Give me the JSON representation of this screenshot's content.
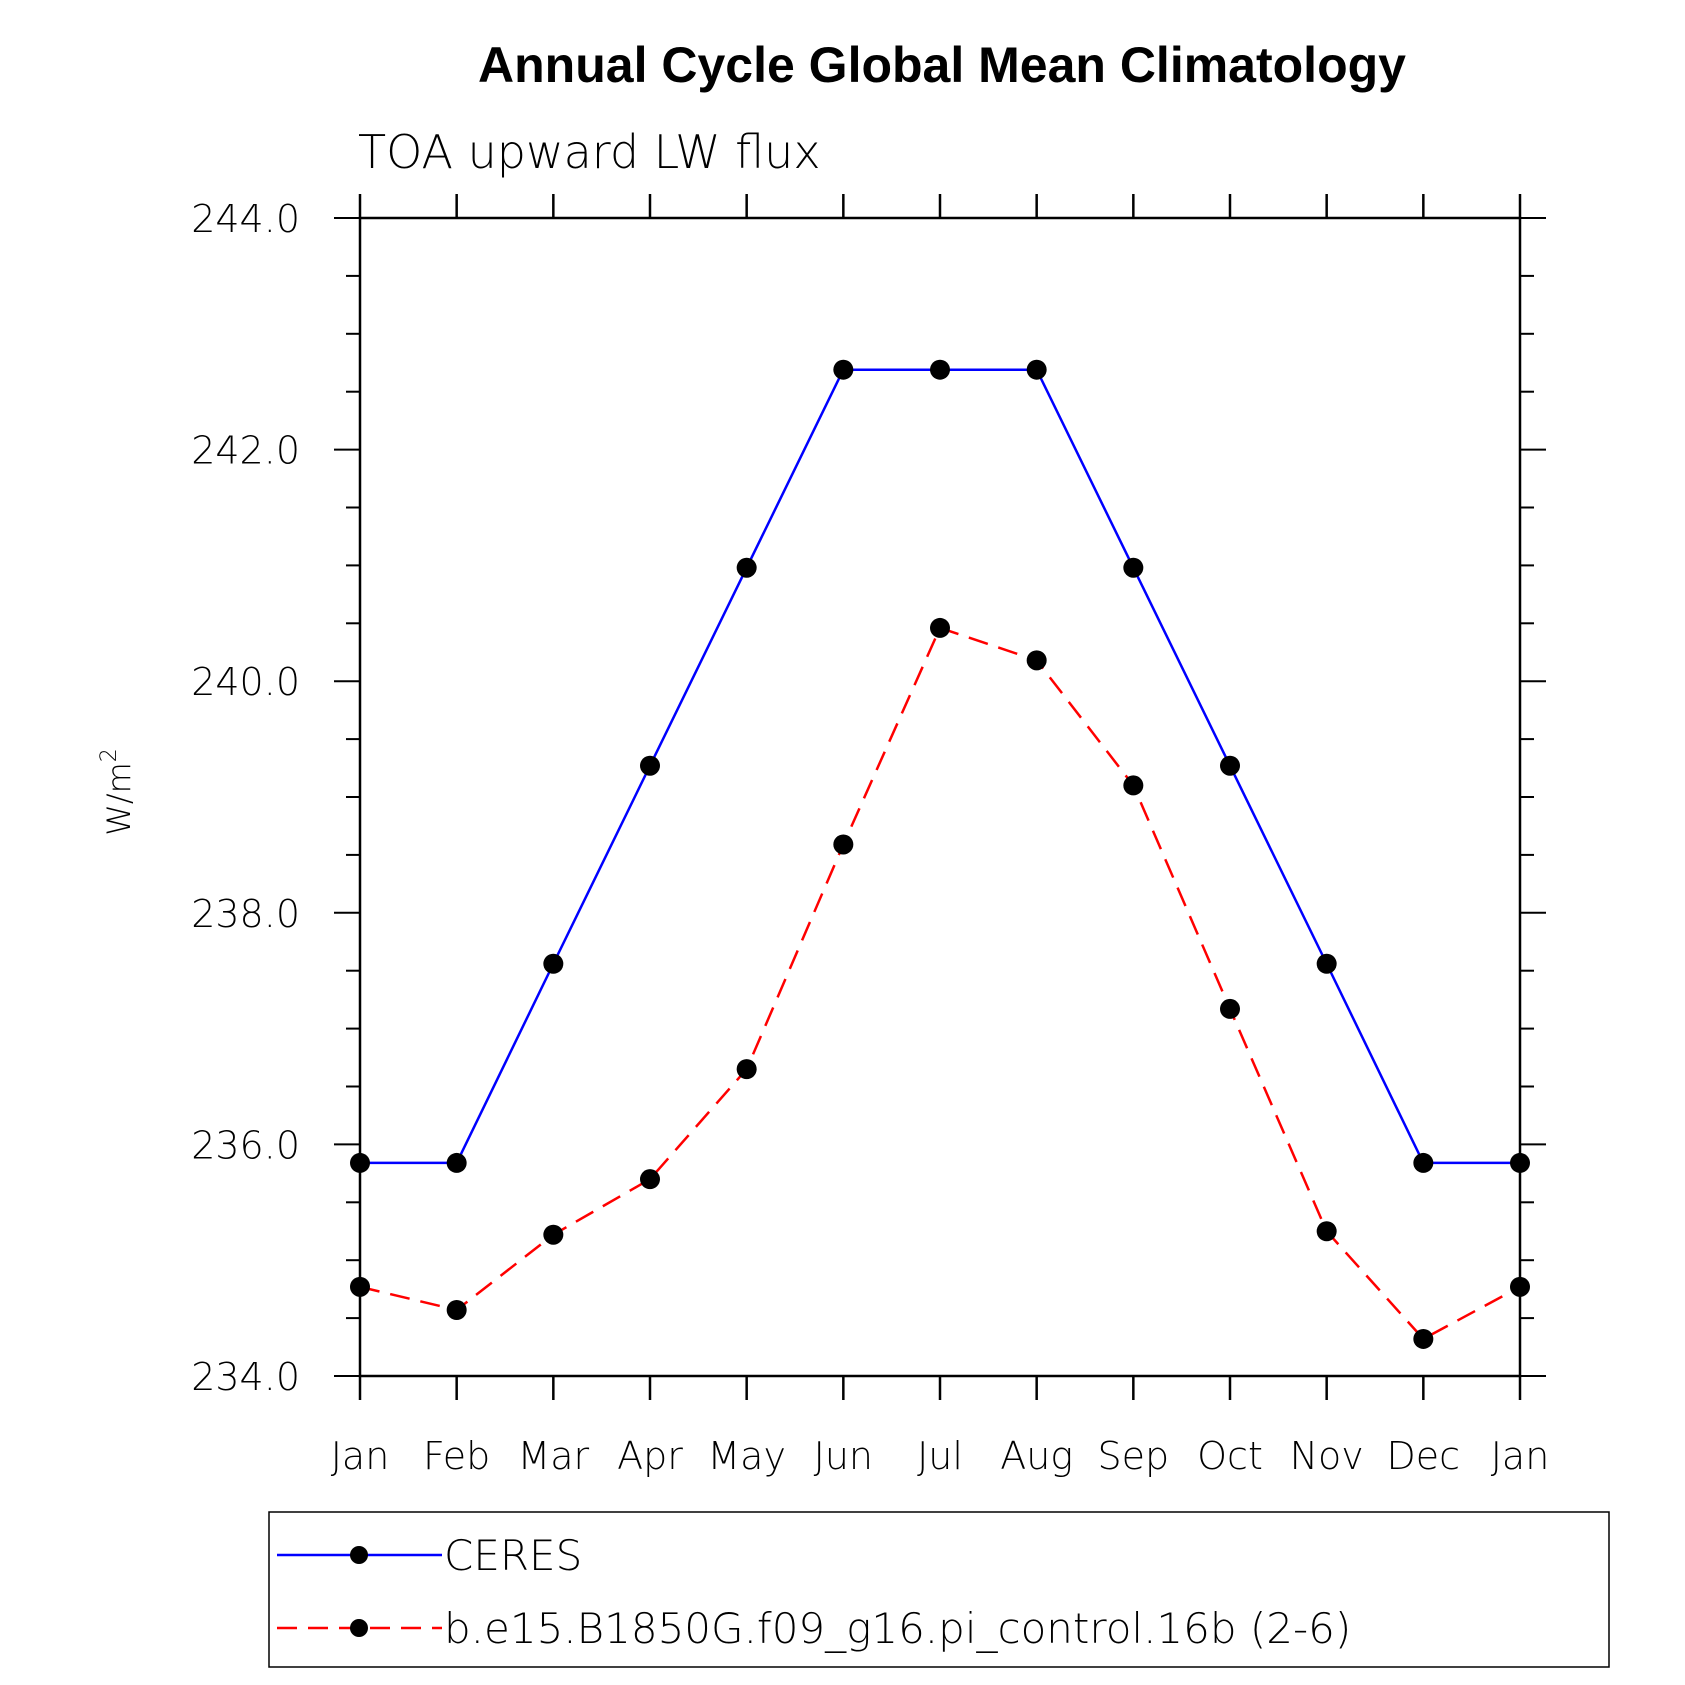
{
  "chart_data": {
    "type": "line",
    "title": "Annual Cycle Global Mean Climatology",
    "subtitle": "TOA upward LW flux",
    "ylabel_base": "W/m",
    "ylabel_sup": "2",
    "categories": [
      "Jan",
      "Feb",
      "Mar",
      "Apr",
      "May",
      "Jun",
      "Jul",
      "Aug",
      "Sep",
      "Oct",
      "Nov",
      "Dec",
      "Jan"
    ],
    "ylim": [
      234.0,
      244.0
    ],
    "yticks": [
      "234.0",
      "236.0",
      "238.0",
      "240.0",
      "242.0",
      "244.0"
    ],
    "series": [
      {
        "name": "CERES",
        "color": "#0000ff",
        "dash": "solid",
        "values": [
          235.84,
          235.84,
          237.56,
          239.27,
          240.98,
          242.69,
          242.69,
          242.69,
          240.98,
          239.27,
          237.56,
          235.84,
          235.84
        ]
      },
      {
        "name": "b.e15.B1850G.f09_g16.pi_control.16b (2-6)",
        "color": "#ff0000",
        "dash": "dashed",
        "values": [
          234.77,
          234.57,
          235.22,
          235.7,
          236.65,
          238.59,
          240.46,
          240.18,
          239.1,
          237.17,
          235.25,
          234.32,
          234.77
        ]
      }
    ]
  }
}
